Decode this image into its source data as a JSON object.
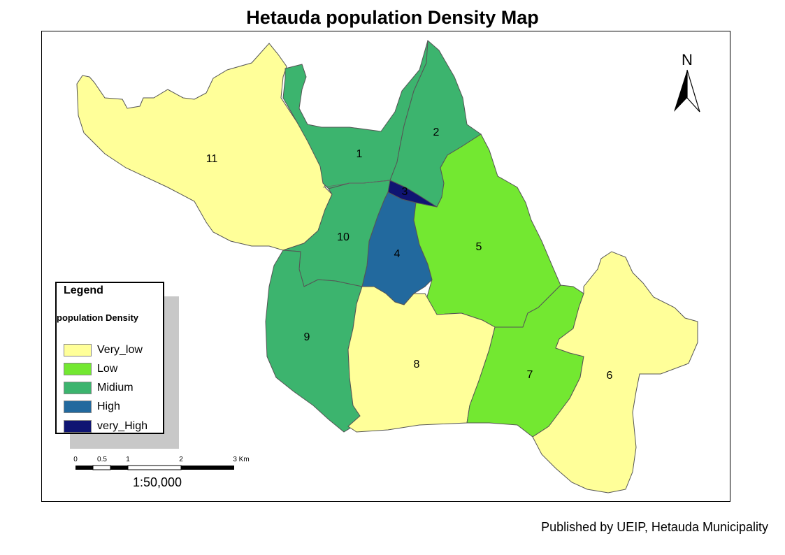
{
  "title": "Hetauda population Density Map",
  "wards": [
    {
      "id": "11",
      "label": "11",
      "density": "Very_low"
    },
    {
      "id": "1",
      "label": "1",
      "density": "Midium"
    },
    {
      "id": "2",
      "label": "2",
      "density": "Midium"
    },
    {
      "id": "3",
      "label": "3",
      "density": "very_High"
    },
    {
      "id": "4",
      "label": "4",
      "density": "High"
    },
    {
      "id": "5",
      "label": "5",
      "density": "Low"
    },
    {
      "id": "10",
      "label": "10",
      "density": "Midium"
    },
    {
      "id": "9",
      "label": "9",
      "density": "Midium"
    },
    {
      "id": "8",
      "label": "8",
      "density": "Very_low"
    },
    {
      "id": "7",
      "label": "7",
      "density": "Low"
    },
    {
      "id": "6",
      "label": "6",
      "density": "Very_low"
    }
  ],
  "colors": {
    "Very_low": "#ffff99",
    "Low": "#73e831",
    "Midium": "#3cb46e",
    "High": "#22699e",
    "very_High": "#0f1472"
  },
  "legend": {
    "title": "Legend",
    "subtitle": "population Density",
    "items": [
      {
        "label": "Very_low",
        "key": "Very_low"
      },
      {
        "label": "Low",
        "key": "Low"
      },
      {
        "label": "Midium",
        "key": "Midium"
      },
      {
        "label": "High",
        "key": "High"
      },
      {
        "label": "very_High",
        "key": "very_High"
      }
    ]
  },
  "scale_bar": {
    "labels": [
      "0",
      "0.5",
      "1",
      "2",
      "3 Km"
    ],
    "ratio": "1:50,000"
  },
  "north_arrow": {
    "letter": "N",
    "icon": "north-arrow-icon"
  },
  "publisher": "Published by UEIP, Hetauda Municipality"
}
